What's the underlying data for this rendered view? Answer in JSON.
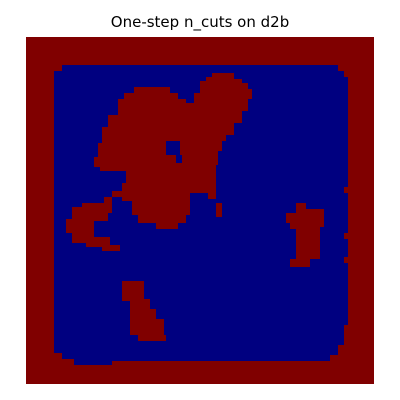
{
  "title": "One-step n_cuts on d2b",
  "colors": {
    "background": "#000080",
    "foreground": "#800000",
    "page": "#ffffff"
  },
  "image_kind": "binary segmentation mask"
}
